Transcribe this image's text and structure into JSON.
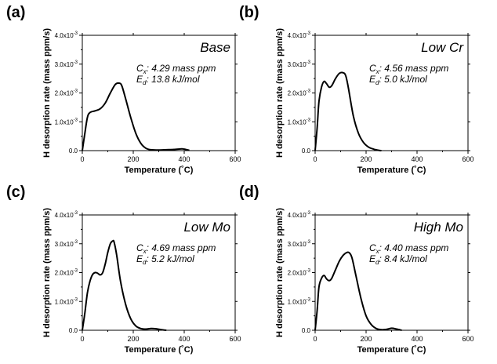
{
  "chart_data": [
    {
      "type": "line",
      "panel": "(a)",
      "sample": "Base",
      "annotations": {
        "cx_sym": "C",
        "cx_sub": "x",
        "cx_value": ": 4.29 mass ppm",
        "ed_sym": "E",
        "ed_sub": "d",
        "ed_value": ": 13.8 kJ/mol"
      },
      "xlabel": "Temperature (˚C)",
      "ylabel": "H desorption rate (mass ppm/s)",
      "xlim": [
        0,
        600
      ],
      "ylim": [
        0,
        0.004
      ],
      "xticks": [
        "0",
        "200",
        "400",
        "600"
      ],
      "yticks": [
        {
          "base": "0.0",
          "exp": ""
        },
        {
          "base": "1.0x10",
          "exp": "-3"
        },
        {
          "base": "2.0x10",
          "exp": "-3"
        },
        {
          "base": "3.0x10",
          "exp": "-3"
        },
        {
          "base": "4.0x10",
          "exp": "-3"
        }
      ],
      "series": [
        {
          "name": "Base",
          "x": [
            0,
            10,
            20,
            30,
            50,
            70,
            90,
            110,
            130,
            145,
            155,
            170,
            190,
            210,
            230,
            250,
            270,
            300,
            330,
            360,
            390,
            400,
            420
          ],
          "y": [
            0,
            0.0006,
            0.00115,
            0.00132,
            0.00138,
            0.00145,
            0.00165,
            0.002,
            0.0023,
            0.00234,
            0.00225,
            0.0018,
            0.00115,
            0.0006,
            0.00025,
            8e-05,
            3e-05,
            2e-05,
            3e-05,
            4e-05,
            6e-05,
            5e-05,
            1e-05
          ]
        }
      ]
    },
    {
      "type": "line",
      "panel": "(b)",
      "sample": "Low Cr",
      "annotations": {
        "cx_sym": "C",
        "cx_sub": "x",
        "cx_value": ": 4.56 mass ppm",
        "ed_sym": "E",
        "ed_sub": "d",
        "ed_value": ": 5.0 kJ/mol"
      },
      "xlabel": "Temperature (˚C)",
      "ylabel": "H desorption rate (mass ppm/s)",
      "xlim": [
        0,
        600
      ],
      "ylim": [
        0,
        0.004
      ],
      "xticks": [
        "0",
        "200",
        "400",
        "600"
      ],
      "yticks": [
        {
          "base": "0.0",
          "exp": ""
        },
        {
          "base": "1.0x10",
          "exp": "-3"
        },
        {
          "base": "2.0x10",
          "exp": "-3"
        },
        {
          "base": "3.0x10",
          "exp": "-3"
        },
        {
          "base": "4.0x10",
          "exp": "-3"
        }
      ],
      "series": [
        {
          "name": "Low Cr",
          "x": [
            0,
            8,
            15,
            25,
            35,
            45,
            55,
            65,
            80,
            95,
            110,
            120,
            130,
            150,
            170,
            190,
            210,
            230,
            250,
            260
          ],
          "y": [
            0,
            0.0008,
            0.0017,
            0.0022,
            0.0024,
            0.00232,
            0.0022,
            0.00225,
            0.0025,
            0.00268,
            0.0027,
            0.0026,
            0.0022,
            0.0012,
            0.0006,
            0.00028,
            0.00012,
            5e-05,
            1e-05,
            0
          ]
        }
      ]
    },
    {
      "type": "line",
      "panel": "(c)",
      "sample": "Low Mo",
      "annotations": {
        "cx_sym": "C",
        "cx_sub": "x",
        "cx_value": ": 4.69 mass ppm",
        "ed_sym": "E",
        "ed_sub": "d",
        "ed_value": ": 5.2 kJ/mol"
      },
      "xlabel": "Temperature (˚C)",
      "ylabel": "H desorption rate (mass ppm/s)",
      "xlim": [
        0,
        600
      ],
      "ylim": [
        0,
        0.004
      ],
      "xticks": [
        "0",
        "200",
        "400",
        "600"
      ],
      "yticks": [
        {
          "base": "0.0",
          "exp": ""
        },
        {
          "base": "1.0x10",
          "exp": "-3"
        },
        {
          "base": "2.0x10",
          "exp": "-3"
        },
        {
          "base": "3.0x10",
          "exp": "-3"
        },
        {
          "base": "4.0x10",
          "exp": "-3"
        }
      ],
      "series": [
        {
          "name": "Low Mo",
          "x": [
            0,
            10,
            20,
            30,
            40,
            50,
            60,
            70,
            80,
            90,
            100,
            110,
            120,
            125,
            135,
            150,
            170,
            190,
            210,
            230,
            250,
            270,
            290,
            310,
            330
          ],
          "y": [
            0,
            0.0006,
            0.0013,
            0.0017,
            0.00193,
            0.002,
            0.00198,
            0.00192,
            0.002,
            0.0023,
            0.0027,
            0.003,
            0.0031,
            0.00305,
            0.0026,
            0.0017,
            0.0009,
            0.0004,
            0.00015,
            6e-05,
            4e-05,
            6e-05,
            5e-05,
            2e-05,
            0
          ]
        }
      ]
    },
    {
      "type": "line",
      "panel": "(d)",
      "sample": "High Mo",
      "annotations": {
        "cx_sym": "C",
        "cx_sub": "x",
        "cx_value": ": 4.40 mass ppm",
        "ed_sym": "E",
        "ed_sub": "d",
        "ed_value": ": 8.4 kJ/mol"
      },
      "xlabel": "Temperature (˚C)",
      "ylabel": "H desorption rate (mass ppm/s)",
      "xlim": [
        0,
        600
      ],
      "ylim": [
        0,
        0.004
      ],
      "xticks": [
        "0",
        "200",
        "400",
        "600"
      ],
      "yticks": [
        {
          "base": "0.0",
          "exp": ""
        },
        {
          "base": "1.0x10",
          "exp": "-3"
        },
        {
          "base": "2.0x10",
          "exp": "-3"
        },
        {
          "base": "3.0x10",
          "exp": "-3"
        },
        {
          "base": "4.0x10",
          "exp": "-3"
        }
      ],
      "series": [
        {
          "name": "High Mo",
          "x": [
            0,
            8,
            15,
            25,
            35,
            45,
            55,
            65,
            80,
            95,
            110,
            125,
            135,
            145,
            160,
            180,
            200,
            220,
            240,
            260,
            280,
            300,
            320,
            340
          ],
          "y": [
            0,
            0.0007,
            0.0015,
            0.0018,
            0.0019,
            0.00178,
            0.00172,
            0.0018,
            0.0021,
            0.0024,
            0.0026,
            0.0027,
            0.00268,
            0.0025,
            0.0019,
            0.0011,
            0.0005,
            0.0002,
            6e-05,
            2e-05,
            3e-05,
            7e-05,
            4e-05,
            0
          ]
        }
      ]
    }
  ]
}
